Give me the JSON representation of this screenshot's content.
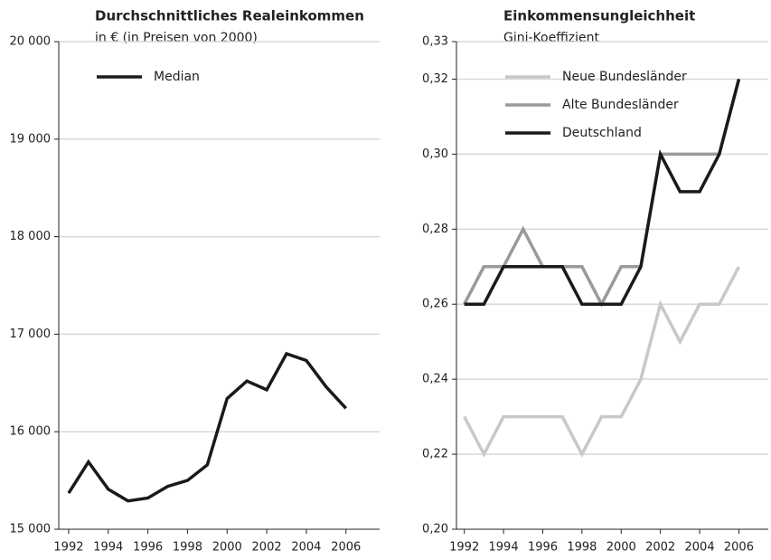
{
  "chart_data": [
    {
      "type": "line",
      "title": "Durchschnittliches Realeinkommen",
      "subtitle": "in € (in Preisen von 2000)",
      "x": [
        1992,
        1993,
        1994,
        1995,
        1996,
        1997,
        1998,
        1999,
        2000,
        2001,
        2002,
        2003,
        2004,
        2005,
        2006
      ],
      "series": [
        {
          "name": "Median",
          "color": "#1a1a1a",
          "values": [
            15370,
            15690,
            15410,
            15290,
            15320,
            15440,
            15500,
            15660,
            16340,
            16520,
            16430,
            16800,
            16730,
            16460,
            16240
          ]
        }
      ],
      "xlim": [
        1991.5,
        2007.7
      ],
      "xticks": [
        1992,
        1994,
        1996,
        1998,
        2000,
        2002,
        2004,
        2006
      ],
      "ylim": [
        15000,
        20000
      ],
      "yticks": [
        {
          "value": 15000,
          "label": "15 000"
        },
        {
          "value": 16000,
          "label": "16 000"
        },
        {
          "value": 17000,
          "label": "17 000"
        },
        {
          "value": 18000,
          "label": "18 000"
        },
        {
          "value": 19000,
          "label": "19 000"
        },
        {
          "value": 20000,
          "label": "20 000"
        }
      ],
      "grid": true,
      "legend": "upper left"
    },
    {
      "type": "line",
      "title": "Einkommensungleichheit",
      "subtitle": "Gini-Koeffizient",
      "x": [
        1992,
        1993,
        1994,
        1995,
        1996,
        1997,
        1998,
        1999,
        2000,
        2001,
        2002,
        2003,
        2004,
        2005,
        2006
      ],
      "series": [
        {
          "name": "Neue Bundesländer",
          "color": "#c8c8c8",
          "values": [
            0.23,
            0.22,
            0.23,
            0.23,
            0.23,
            0.23,
            0.22,
            0.23,
            0.23,
            0.24,
            0.26,
            0.25,
            0.26,
            0.26,
            0.27
          ]
        },
        {
          "name": "Alte Bundesländer",
          "color": "#9a9a9a",
          "values": [
            0.26,
            0.27,
            0.27,
            0.28,
            0.27,
            0.27,
            0.27,
            0.26,
            0.27,
            0.27,
            0.3,
            0.3,
            0.3,
            0.3,
            0.32
          ]
        },
        {
          "name": "Deutschland",
          "color": "#1a1a1a",
          "values": [
            0.26,
            0.26,
            0.27,
            0.27,
            0.27,
            0.27,
            0.26,
            0.26,
            0.26,
            0.27,
            0.3,
            0.29,
            0.29,
            0.3,
            0.32
          ]
        }
      ],
      "xlim": [
        1991.6,
        2007.5
      ],
      "xticks": [
        1992,
        1994,
        1996,
        1998,
        2000,
        2002,
        2004,
        2006
      ],
      "ylim": [
        0.2,
        0.33
      ],
      "yticks": [
        {
          "value": 0.2,
          "label": "0,20"
        },
        {
          "value": 0.22,
          "label": "0,22"
        },
        {
          "value": 0.24,
          "label": "0,24"
        },
        {
          "value": 0.26,
          "label": "0,26"
        },
        {
          "value": 0.28,
          "label": "0,28"
        },
        {
          "value": 0.3,
          "label": "0,30"
        },
        {
          "value": 0.32,
          "label": "0,32"
        },
        {
          "value": 0.33,
          "label": "0,33"
        }
      ],
      "grid": true,
      "legend": "upper left"
    }
  ]
}
